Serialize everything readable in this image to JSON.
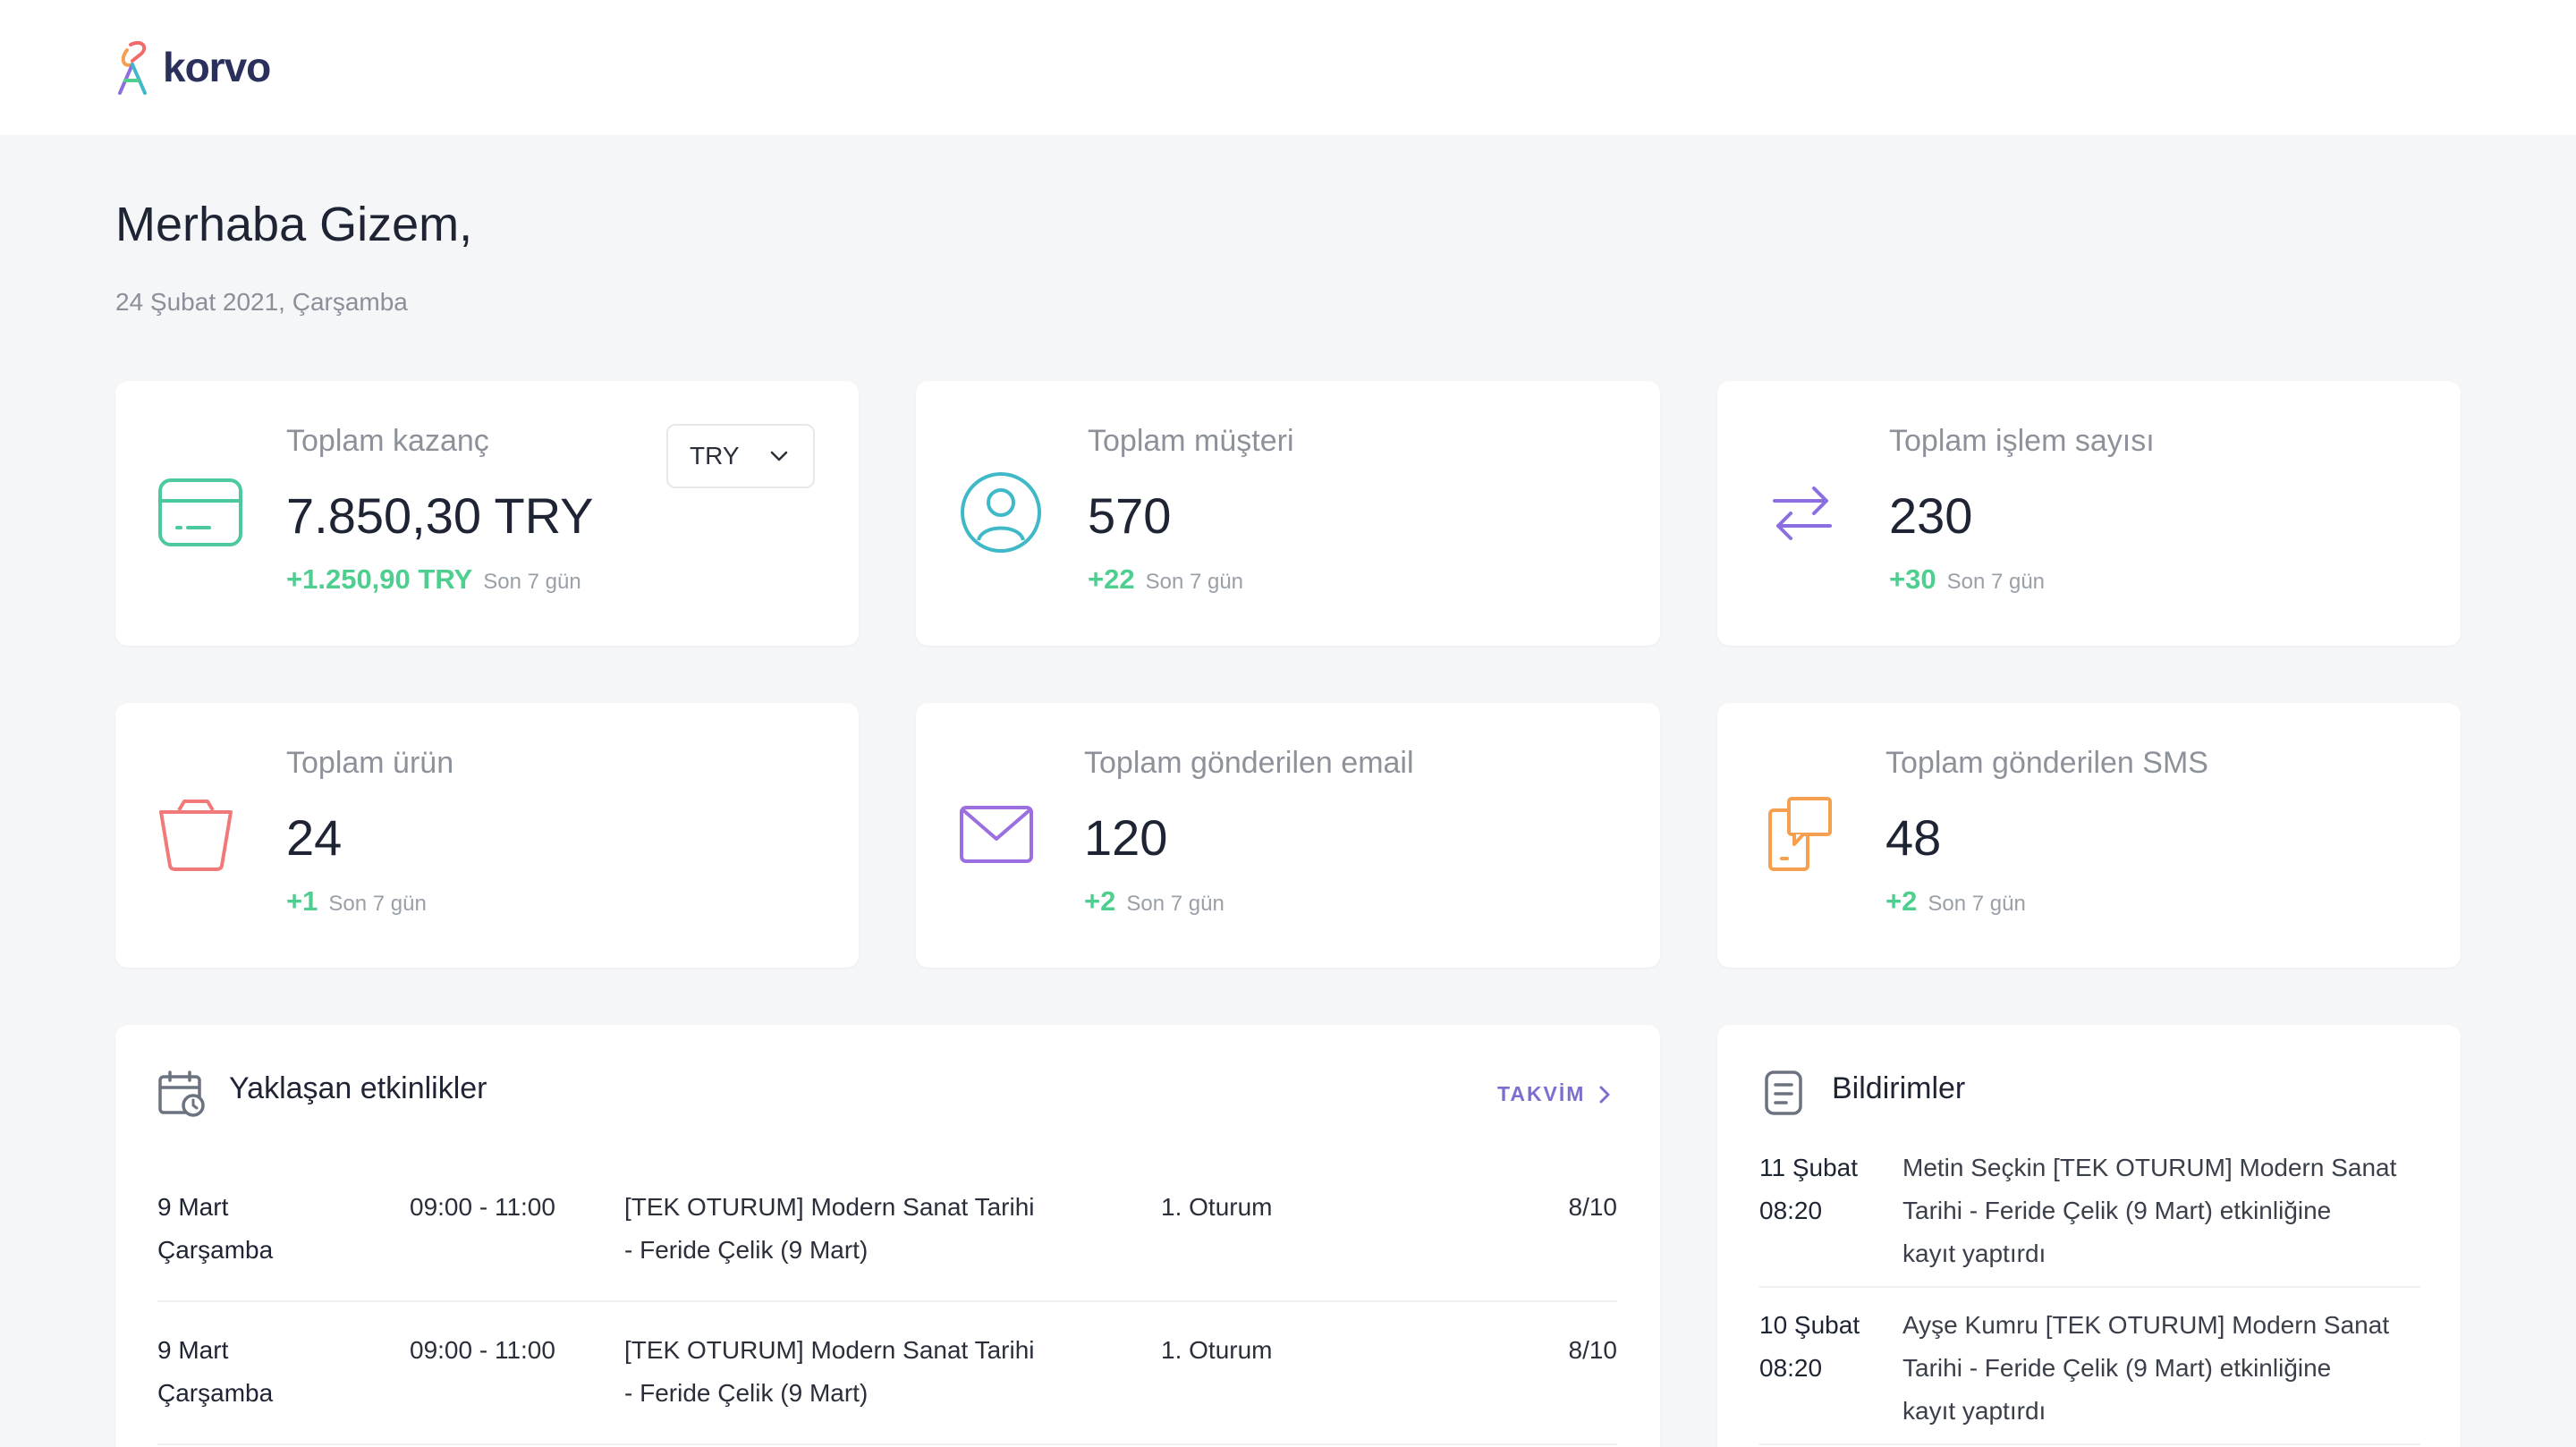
{
  "brand": {
    "name": "korvo"
  },
  "header": {
    "greeting": "Merhaba Gizem,",
    "date": "24 Şubat 2021, Çarşamba"
  },
  "stats": {
    "earnings": {
      "label": "Toplam kazanç",
      "value": "7.850,30 TRY",
      "delta": "+1.250,90 TRY",
      "period": "Son 7 gün",
      "icon": "credit-card-icon",
      "currency": "TRY"
    },
    "customers": {
      "label": "Toplam müşteri",
      "value": "570",
      "delta": "+22",
      "period": "Son 7 gün",
      "icon": "user-icon"
    },
    "transactions": {
      "label": "Toplam işlem sayısı",
      "value": "230",
      "delta": "+30",
      "period": "Son 7 gün",
      "icon": "swap-arrows-icon"
    },
    "products": {
      "label": "Toplam ürün",
      "value": "24",
      "delta": "+1",
      "period": "Son 7 gün",
      "icon": "basket-icon"
    },
    "emails": {
      "label": "Toplam gönderilen email",
      "value": "120",
      "delta": "+2",
      "period": "Son 7 gün",
      "icon": "envelope-icon"
    },
    "sms": {
      "label": "Toplam gönderilen SMS",
      "value": "48",
      "delta": "+2",
      "period": "Son 7 gün",
      "icon": "phone-message-icon"
    }
  },
  "events": {
    "title": "Yaklaşan etkinlikler",
    "calendar_link": "TAKVİM",
    "rows": [
      {
        "date": "9 Mart",
        "weekday": "Çarşamba",
        "time": "09:00 - 11:00",
        "title_l1": "[TEK OTURUM] Modern Sanat Tarihi",
        "title_l2": "- Feride Çelik (9 Mart)",
        "session": "1. Oturum",
        "capacity": "8/10"
      },
      {
        "date": "9 Mart",
        "weekday": "Çarşamba",
        "time": "09:00 - 11:00",
        "title_l1": "[TEK OTURUM] Modern Sanat Tarihi",
        "title_l2": "- Feride Çelik (9 Mart)",
        "session": "1. Oturum",
        "capacity": "8/10"
      }
    ]
  },
  "notifications": {
    "title": "Bildirimler",
    "items": [
      {
        "date": "11 Şubat",
        "time": "08:20",
        "l1": "Metin Seçkin [TEK OTURUM] Modern Sanat",
        "l2": "Tarihi - Feride Çelik (9 Mart) etkinliğine",
        "l3": "kayıt yaptırdı"
      },
      {
        "date": "10 Şubat",
        "time": "08:20",
        "l1": "Ayşe Kumru [TEK OTURUM] Modern Sanat",
        "l2": "Tarihi - Feride Çelik (9 Mart) etkinliğine",
        "l3": "kayıt yaptırdı"
      }
    ]
  },
  "colors": {
    "accent_green": "#4fcf8f",
    "earnings_icon": "#4cc9a0",
    "customers_icon": "#3fb8c8",
    "transactions_icon": "#8b6fe0",
    "products_icon": "#f07a7a",
    "emails_icon": "#9b6fe0",
    "sms_icon": "#f5a050",
    "link": "#7a6fd0"
  }
}
